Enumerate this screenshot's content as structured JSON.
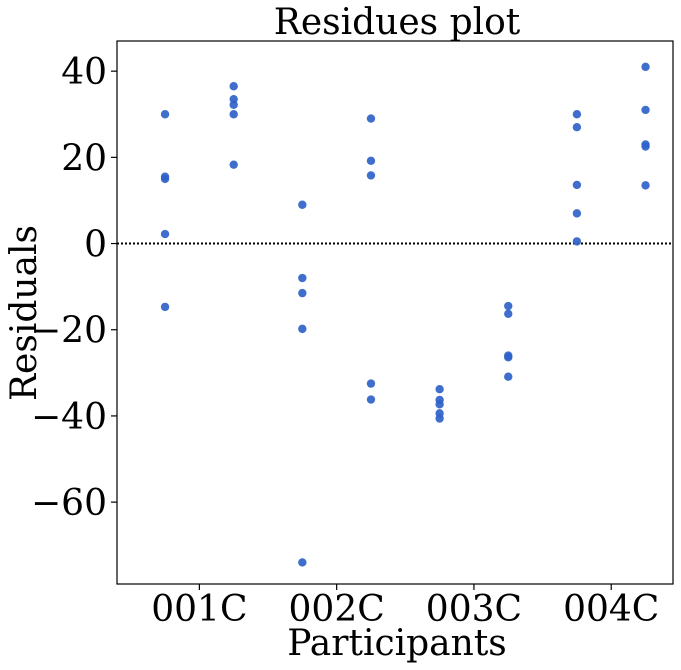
{
  "chart_data": {
    "type": "scatter",
    "title": "Residues plot",
    "xlabel": "Participants",
    "ylabel": "Residuals",
    "categories": [
      "001C",
      "002C",
      "003C",
      "004C"
    ],
    "xlim": [
      -0.6,
      3.45
    ],
    "ylim": [
      -79,
      47
    ],
    "yticks": [
      40,
      20,
      0,
      -20,
      -40,
      -60
    ],
    "ytick_labels": [
      "40",
      "20",
      "0",
      "−20",
      "−40",
      "−60"
    ],
    "reference_line": {
      "y": 0,
      "style": "dotted",
      "color": "#000000"
    },
    "grid": false,
    "marker_color": "#2f62c9",
    "points": [
      {
        "x": -0.25,
        "y": 30.0
      },
      {
        "x": -0.25,
        "y": 15.5
      },
      {
        "x": -0.25,
        "y": 15.0
      },
      {
        "x": -0.25,
        "y": 2.2
      },
      {
        "x": -0.25,
        "y": -14.7
      },
      {
        "x": 0.25,
        "y": 36.5
      },
      {
        "x": 0.25,
        "y": 33.5
      },
      {
        "x": 0.25,
        "y": 32.2
      },
      {
        "x": 0.25,
        "y": 30.0
      },
      {
        "x": 0.25,
        "y": 18.3
      },
      {
        "x": 0.75,
        "y": 9.0
      },
      {
        "x": 0.75,
        "y": -8.0
      },
      {
        "x": 0.75,
        "y": -11.5
      },
      {
        "x": 0.75,
        "y": -19.8
      },
      {
        "x": 0.75,
        "y": -74.0
      },
      {
        "x": 1.25,
        "y": 29.0
      },
      {
        "x": 1.25,
        "y": 19.2
      },
      {
        "x": 1.25,
        "y": 15.8
      },
      {
        "x": 1.25,
        "y": -32.5
      },
      {
        "x": 1.25,
        "y": -36.2
      },
      {
        "x": 1.75,
        "y": -33.8
      },
      {
        "x": 1.75,
        "y": -36.3
      },
      {
        "x": 1.75,
        "y": -37.3
      },
      {
        "x": 1.75,
        "y": -39.4
      },
      {
        "x": 1.75,
        "y": -40.6
      },
      {
        "x": 2.25,
        "y": -14.5
      },
      {
        "x": 2.25,
        "y": -16.3
      },
      {
        "x": 2.25,
        "y": -26.0
      },
      {
        "x": 2.25,
        "y": -26.4
      },
      {
        "x": 2.25,
        "y": -30.9
      },
      {
        "x": 2.75,
        "y": 30.0
      },
      {
        "x": 2.75,
        "y": 27.0
      },
      {
        "x": 2.75,
        "y": 13.6
      },
      {
        "x": 2.75,
        "y": 7.0
      },
      {
        "x": 2.75,
        "y": 0.5
      },
      {
        "x": 3.25,
        "y": 41.0
      },
      {
        "x": 3.25,
        "y": 31.0
      },
      {
        "x": 3.25,
        "y": 23.0
      },
      {
        "x": 3.25,
        "y": 22.5
      },
      {
        "x": 3.25,
        "y": 13.5
      }
    ]
  }
}
